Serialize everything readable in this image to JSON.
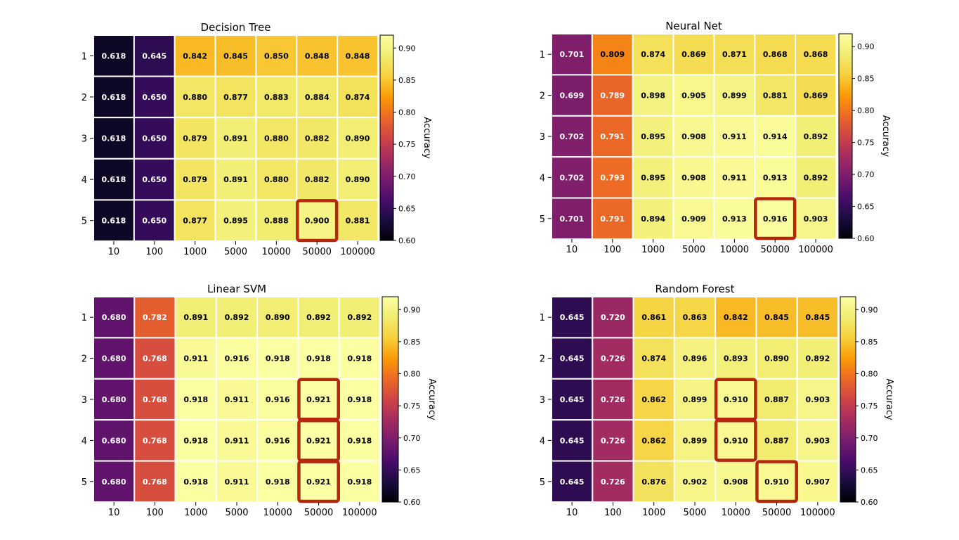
{
  "chart_data": [
    {
      "type": "heatmap",
      "title": "Decision Tree",
      "xlabel": "",
      "ylabel": "",
      "x_categories": [
        "10",
        "100",
        "1000",
        "5000",
        "10000",
        "50000",
        "100000"
      ],
      "y_categories": [
        "1",
        "2",
        "3",
        "4",
        "5"
      ],
      "values": [
        [
          "0.618",
          "0.645",
          "0.842",
          "0.845",
          "0.850",
          "0.848",
          "0.848"
        ],
        [
          "0.618",
          "0.650",
          "0.880",
          "0.877",
          "0.883",
          "0.884",
          "0.874"
        ],
        [
          "0.618",
          "0.650",
          "0.879",
          "0.891",
          "0.880",
          "0.882",
          "0.890"
        ],
        [
          "0.618",
          "0.650",
          "0.879",
          "0.891",
          "0.880",
          "0.882",
          "0.890"
        ],
        [
          "0.618",
          "0.650",
          "0.877",
          "0.895",
          "0.888",
          "0.900",
          "0.881"
        ]
      ],
      "highlighted": [
        [
          4,
          5
        ]
      ],
      "colorbar": {
        "label": "Accuracy",
        "range": [
          0.6,
          0.92
        ],
        "ticks": [
          "0.60",
          "0.65",
          "0.70",
          "0.75",
          "0.80",
          "0.85",
          "0.90"
        ]
      }
    },
    {
      "type": "heatmap",
      "title": "Neural Net",
      "xlabel": "",
      "ylabel": "",
      "x_categories": [
        "10",
        "100",
        "1000",
        "5000",
        "10000",
        "50000",
        "100000"
      ],
      "y_categories": [
        "1",
        "2",
        "3",
        "4",
        "5"
      ],
      "values": [
        [
          "0.701",
          "0.809",
          "0.874",
          "0.869",
          "0.871",
          "0.868",
          "0.868"
        ],
        [
          "0.699",
          "0.789",
          "0.898",
          "0.905",
          "0.899",
          "0.881",
          "0.869"
        ],
        [
          "0.702",
          "0.791",
          "0.895",
          "0.908",
          "0.911",
          "0.914",
          "0.892"
        ],
        [
          "0.702",
          "0.793",
          "0.895",
          "0.908",
          "0.911",
          "0.913",
          "0.892"
        ],
        [
          "0.701",
          "0.791",
          "0.894",
          "0.909",
          "0.913",
          "0.916",
          "0.903"
        ]
      ],
      "highlighted": [
        [
          4,
          5
        ]
      ],
      "colorbar": {
        "label": "Accuracy",
        "range": [
          0.6,
          0.92
        ],
        "ticks": [
          "0.60",
          "0.65",
          "0.70",
          "0.75",
          "0.80",
          "0.85",
          "0.90"
        ]
      }
    },
    {
      "type": "heatmap",
      "title": "Linear SVM",
      "xlabel": "",
      "ylabel": "",
      "x_categories": [
        "10",
        "100",
        "1000",
        "5000",
        "10000",
        "50000",
        "100000"
      ],
      "y_categories": [
        "1",
        "2",
        "3",
        "4",
        "5"
      ],
      "values": [
        [
          "0.680",
          "0.782",
          "0.891",
          "0.892",
          "0.890",
          "0.892",
          "0.892"
        ],
        [
          "0.680",
          "0.768",
          "0.911",
          "0.916",
          "0.918",
          "0.918",
          "0.918"
        ],
        [
          "0.680",
          "0.768",
          "0.918",
          "0.911",
          "0.916",
          "0.921",
          "0.918"
        ],
        [
          "0.680",
          "0.768",
          "0.918",
          "0.911",
          "0.916",
          "0.921",
          "0.918"
        ],
        [
          "0.680",
          "0.768",
          "0.918",
          "0.911",
          "0.918",
          "0.921",
          "0.918"
        ]
      ],
      "highlighted": [
        [
          2,
          5
        ],
        [
          3,
          5
        ],
        [
          4,
          5
        ]
      ],
      "colorbar": {
        "label": "Accuracy",
        "range": [
          0.6,
          0.92
        ],
        "ticks": [
          "0.60",
          "0.65",
          "0.70",
          "0.75",
          "0.80",
          "0.85",
          "0.90"
        ]
      }
    },
    {
      "type": "heatmap",
      "title": "Random Forest",
      "xlabel": "",
      "ylabel": "",
      "x_categories": [
        "10",
        "100",
        "1000",
        "5000",
        "10000",
        "50000",
        "100000"
      ],
      "y_categories": [
        "1",
        "2",
        "3",
        "4",
        "5"
      ],
      "values": [
        [
          "0.645",
          "0.720",
          "0.861",
          "0.863",
          "0.842",
          "0.845",
          "0.845"
        ],
        [
          "0.645",
          "0.726",
          "0.874",
          "0.896",
          "0.893",
          "0.890",
          "0.892"
        ],
        [
          "0.645",
          "0.726",
          "0.862",
          "0.899",
          "0.910",
          "0.887",
          "0.903"
        ],
        [
          "0.645",
          "0.726",
          "0.862",
          "0.899",
          "0.910",
          "0.887",
          "0.903"
        ],
        [
          "0.645",
          "0.726",
          "0.876",
          "0.902",
          "0.908",
          "0.910",
          "0.907"
        ]
      ],
      "highlighted": [
        [
          2,
          4
        ],
        [
          3,
          4
        ],
        [
          4,
          5
        ]
      ],
      "colorbar": {
        "label": "Accuracy",
        "range": [
          0.6,
          0.92
        ],
        "ticks": [
          "0.60",
          "0.65",
          "0.70",
          "0.75",
          "0.80",
          "0.85",
          "0.90"
        ]
      }
    }
  ],
  "colors": {
    "highlight_border": "#b5280e",
    "cell_border": "#ffffff"
  }
}
